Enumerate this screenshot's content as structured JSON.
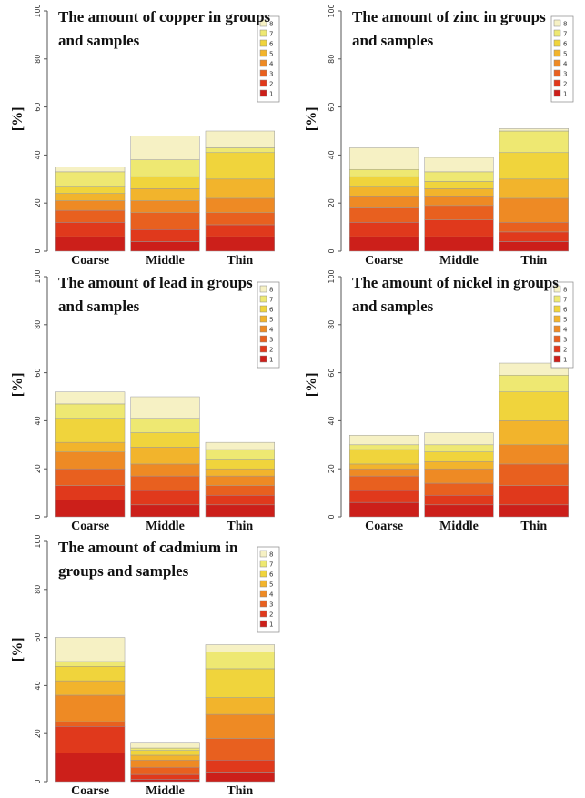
{
  "chart_data": [
    {
      "type": "bar",
      "stacked": true,
      "title": "The amount of copper in groups and samples",
      "y_label": "[%]",
      "categories": [
        "Coarse",
        "Middle",
        "Thin"
      ],
      "ylim": [
        0,
        100
      ],
      "yticks": [
        0,
        20,
        40,
        60,
        80,
        100
      ],
      "series": [
        {
          "name": "1",
          "color": "#cc1f1a",
          "values": [
            6,
            4,
            6
          ]
        },
        {
          "name": "2",
          "color": "#e0391c",
          "values": [
            6,
            5,
            5
          ]
        },
        {
          "name": "3",
          "color": "#e8601f",
          "values": [
            5,
            7,
            5
          ]
        },
        {
          "name": "4",
          "color": "#ee8a24",
          "values": [
            4,
            5,
            6
          ]
        },
        {
          "name": "5",
          "color": "#f2b42c",
          "values": [
            3,
            5,
            8
          ]
        },
        {
          "name": "6",
          "color": "#f0d43c",
          "values": [
            3,
            5,
            11
          ]
        },
        {
          "name": "7",
          "color": "#eee872",
          "values": [
            6,
            7,
            2
          ]
        },
        {
          "name": "8",
          "color": "#f6f1c4",
          "values": [
            2,
            10,
            7
          ]
        }
      ]
    },
    {
      "type": "bar",
      "stacked": true,
      "title": "The amount of zinc in groups and samples",
      "y_label": "[%]",
      "categories": [
        "Coarse",
        "Middle",
        "Thin"
      ],
      "ylim": [
        0,
        100
      ],
      "yticks": [
        0,
        20,
        40,
        60,
        80,
        100
      ],
      "series": [
        {
          "name": "1",
          "color": "#cc1f1a",
          "values": [
            6,
            6,
            4
          ]
        },
        {
          "name": "2",
          "color": "#e0391c",
          "values": [
            6,
            7,
            4
          ]
        },
        {
          "name": "3",
          "color": "#e8601f",
          "values": [
            6,
            6,
            4
          ]
        },
        {
          "name": "4",
          "color": "#ee8a24",
          "values": [
            5,
            4,
            10
          ]
        },
        {
          "name": "5",
          "color": "#f2b42c",
          "values": [
            4,
            3,
            8
          ]
        },
        {
          "name": "6",
          "color": "#f0d43c",
          "values": [
            4,
            3,
            11
          ]
        },
        {
          "name": "7",
          "color": "#eee872",
          "values": [
            3,
            4,
            9
          ]
        },
        {
          "name": "8",
          "color": "#f6f1c4",
          "values": [
            9,
            6,
            1
          ]
        }
      ]
    },
    {
      "type": "bar",
      "stacked": true,
      "title": "The amount of lead in groups and samples",
      "y_label": "[%]",
      "categories": [
        "Coarse",
        "Middle",
        "Thin"
      ],
      "ylim": [
        0,
        100
      ],
      "yticks": [
        0,
        20,
        40,
        60,
        80,
        100
      ],
      "series": [
        {
          "name": "1",
          "color": "#cc1f1a",
          "values": [
            7,
            5,
            5
          ]
        },
        {
          "name": "2",
          "color": "#e0391c",
          "values": [
            6,
            6,
            4
          ]
        },
        {
          "name": "3",
          "color": "#e8601f",
          "values": [
            7,
            6,
            4
          ]
        },
        {
          "name": "4",
          "color": "#ee8a24",
          "values": [
            7,
            5,
            4
          ]
        },
        {
          "name": "5",
          "color": "#f2b42c",
          "values": [
            4,
            7,
            3
          ]
        },
        {
          "name": "6",
          "color": "#f0d43c",
          "values": [
            10,
            6,
            4
          ]
        },
        {
          "name": "7",
          "color": "#eee872",
          "values": [
            6,
            6,
            4
          ]
        },
        {
          "name": "8",
          "color": "#f6f1c4",
          "values": [
            5,
            9,
            3
          ]
        }
      ]
    },
    {
      "type": "bar",
      "stacked": true,
      "title": "The amount of nickel in groups and samples",
      "y_label": "[%]",
      "categories": [
        "Coarse",
        "Middle",
        "Thin"
      ],
      "ylim": [
        0,
        100
      ],
      "yticks": [
        0,
        20,
        40,
        60,
        80,
        100
      ],
      "series": [
        {
          "name": "1",
          "color": "#cc1f1a",
          "values": [
            6,
            5,
            5
          ]
        },
        {
          "name": "2",
          "color": "#e0391c",
          "values": [
            5,
            4,
            8
          ]
        },
        {
          "name": "3",
          "color": "#e8601f",
          "values": [
            6,
            5,
            9
          ]
        },
        {
          "name": "4",
          "color": "#ee8a24",
          "values": [
            3,
            6,
            8
          ]
        },
        {
          "name": "5",
          "color": "#f2b42c",
          "values": [
            2,
            3,
            10
          ]
        },
        {
          "name": "6",
          "color": "#f0d43c",
          "values": [
            6,
            4,
            12
          ]
        },
        {
          "name": "7",
          "color": "#eee872",
          "values": [
            2,
            3,
            7
          ]
        },
        {
          "name": "8",
          "color": "#f6f1c4",
          "values": [
            4,
            5,
            5
          ]
        }
      ]
    },
    {
      "type": "bar",
      "stacked": true,
      "title": "The amount of cadmium in groups and samples",
      "y_label": "[%]",
      "categories": [
        "Coarse",
        "Middle",
        "Thin"
      ],
      "ylim": [
        0,
        100
      ],
      "yticks": [
        0,
        20,
        40,
        60,
        80,
        100
      ],
      "series": [
        {
          "name": "1",
          "color": "#cc1f1a",
          "values": [
            12,
            1,
            4
          ]
        },
        {
          "name": "2",
          "color": "#e0391c",
          "values": [
            11,
            2,
            5
          ]
        },
        {
          "name": "3",
          "color": "#e8601f",
          "values": [
            2,
            3,
            9
          ]
        },
        {
          "name": "4",
          "color": "#ee8a24",
          "values": [
            11,
            3,
            10
          ]
        },
        {
          "name": "5",
          "color": "#f2b42c",
          "values": [
            6,
            2,
            7
          ]
        },
        {
          "name": "6",
          "color": "#f0d43c",
          "values": [
            6,
            2,
            12
          ]
        },
        {
          "name": "7",
          "color": "#eee872",
          "values": [
            2,
            1,
            7
          ]
        },
        {
          "name": "8",
          "color": "#f6f1c4",
          "values": [
            10,
            2,
            3
          ]
        }
      ]
    }
  ]
}
